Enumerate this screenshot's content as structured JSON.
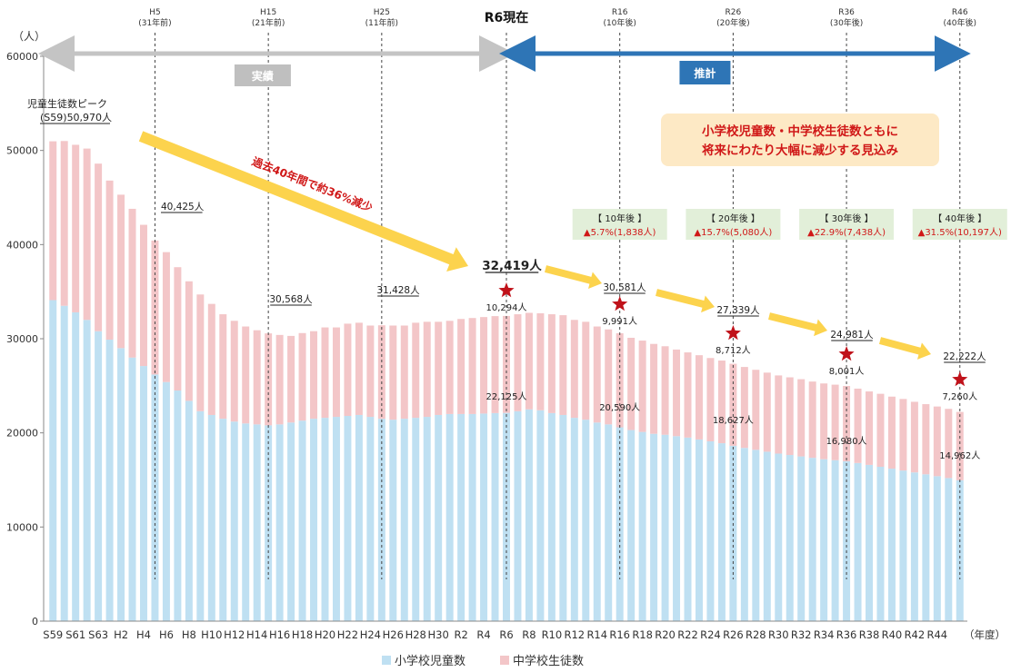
{
  "chart_data": {
    "type": "bar",
    "stacked": true,
    "y_unit": "（人）",
    "x_unit": "（年度）",
    "ylim": [
      0,
      60000
    ],
    "yticks": [
      0,
      10000,
      20000,
      30000,
      40000,
      50000,
      60000
    ],
    "categories": [
      "S59",
      "S60",
      "S61",
      "S62",
      "S63",
      "H1",
      "H2",
      "H3",
      "H4",
      "H5",
      "H6",
      "H7",
      "H8",
      "H9",
      "H10",
      "H11",
      "H12",
      "H13",
      "H14",
      "H15",
      "H16",
      "H17",
      "H18",
      "H19",
      "H20",
      "H21",
      "H22",
      "H23",
      "H24",
      "H25",
      "H26",
      "H27",
      "H28",
      "H29",
      "H30",
      "R1",
      "R2",
      "R3",
      "R4",
      "R5",
      "R6",
      "R7",
      "R8",
      "R9",
      "R10",
      "R11",
      "R12",
      "R13",
      "R14",
      "R15",
      "R16",
      "R17",
      "R18",
      "R19",
      "R20",
      "R21",
      "R22",
      "R23",
      "R24",
      "R25",
      "R26",
      "R27",
      "R28",
      "R29",
      "R30",
      "R31",
      "R32",
      "R33",
      "R34",
      "R35",
      "R36",
      "R37",
      "R38",
      "R39",
      "R40",
      "R41",
      "R42",
      "R43",
      "R44",
      "R45",
      "R46"
    ],
    "xtick_labels": [
      "S59",
      "S61",
      "S63",
      "H2",
      "H4",
      "H6",
      "H8",
      "H10",
      "H12",
      "H14",
      "H16",
      "H18",
      "H20",
      "H22",
      "H24",
      "H26",
      "H28",
      "H30",
      "R2",
      "R4",
      "R6",
      "R8",
      "R10",
      "R12",
      "R14",
      "R16",
      "R18",
      "R20",
      "R22",
      "R24",
      "R26",
      "R28",
      "R30",
      "R32",
      "R34",
      "R36",
      "R38",
      "R40",
      "R42",
      "R44"
    ],
    "series": [
      {
        "name": "小学校児童数",
        "color": "#bfe0f2",
        "values": [
          34100,
          33500,
          32800,
          32000,
          30800,
          29900,
          29000,
          28000,
          27100,
          26200,
          25400,
          24500,
          23400,
          22300,
          21900,
          21500,
          21200,
          21000,
          20900,
          20800,
          20900,
          21100,
          21300,
          21500,
          21600,
          21700,
          21800,
          21900,
          21700,
          21500,
          21400,
          21500,
          21600,
          21700,
          21900,
          22000,
          22000,
          22000,
          22050,
          22100,
          22125,
          22300,
          22500,
          22400,
          22100,
          21900,
          21600,
          21400,
          21100,
          20900,
          20590,
          20300,
          20100,
          19900,
          19800,
          19650,
          19500,
          19300,
          19100,
          18900,
          18627,
          18400,
          18200,
          18000,
          17800,
          17650,
          17500,
          17350,
          17200,
          17100,
          16980,
          16800,
          16600,
          16400,
          16200,
          16000,
          15800,
          15600,
          15400,
          15200,
          14962
        ]
      },
      {
        "name": "中学校生徒数",
        "color": "#f3c6c8",
        "values": [
          16870,
          17500,
          17800,
          18200,
          17800,
          16900,
          16300,
          15800,
          15000,
          14225,
          13800,
          13100,
          12700,
          12400,
          11800,
          11100,
          10700,
          10300,
          10000,
          9768,
          9500,
          9200,
          9300,
          9300,
          9600,
          9500,
          9800,
          9800,
          9700,
          9928,
          10000,
          9900,
          10100,
          10100,
          9900,
          9900,
          10100,
          10200,
          10250,
          10300,
          10294,
          10300,
          10250,
          10300,
          10500,
          10600,
          10400,
          10400,
          10200,
          10091,
          9991,
          9800,
          9700,
          9550,
          9400,
          9200,
          9050,
          8950,
          8850,
          8780,
          8712,
          8600,
          8500,
          8400,
          8300,
          8250,
          8200,
          8100,
          8050,
          8020,
          8001,
          7900,
          7800,
          7750,
          7650,
          7600,
          7500,
          7450,
          7400,
          7350,
          7260
        ]
      }
    ],
    "period_labels": {
      "actual": "実績",
      "projection": "推計"
    },
    "ref_lines": [
      {
        "cat": "H5",
        "line1": "H5",
        "line2": "(31年前)"
      },
      {
        "cat": "H15",
        "line1": "H15",
        "line2": "(21年前)"
      },
      {
        "cat": "H25",
        "line1": "H25",
        "line2": "(11年前)"
      },
      {
        "cat": "R6",
        "line1": "R6現在",
        "line2": ""
      },
      {
        "cat": "R16",
        "line1": "R16",
        "line2": "(10年後)"
      },
      {
        "cat": "R26",
        "line1": "R26",
        "line2": "(20年後)"
      },
      {
        "cat": "R36",
        "line1": "R36",
        "line2": "(30年後)"
      },
      {
        "cat": "R46",
        "line1": "R46",
        "line2": "(40年後)"
      }
    ],
    "peak_label": {
      "line1": "児童生徒数ピーク",
      "line2": "(S59)50,970人"
    },
    "trend_note": "過去40年間で約36%減少",
    "headline": {
      "line1": "小学校児童数・中学校生徒数ともに",
      "line2": "将来にわたり大幅に減少する見込み"
    },
    "total_labels": [
      {
        "cat": "H5",
        "text": "40,425人"
      },
      {
        "cat": "H15",
        "text": "30,568人"
      },
      {
        "cat": "H25",
        "text": "31,428人"
      },
      {
        "cat": "R6",
        "text": "32,419人",
        "major": true
      },
      {
        "cat": "R16",
        "text": "30,581人"
      },
      {
        "cat": "R26",
        "text": "27,339人"
      },
      {
        "cat": "R36",
        "text": "24,981人"
      },
      {
        "cat": "R46",
        "text": "22,222人"
      }
    ],
    "junior_labels": [
      {
        "cat": "R6",
        "text": "10,294人"
      },
      {
        "cat": "R16",
        "text": "9,991人"
      },
      {
        "cat": "R26",
        "text": "8,712人"
      },
      {
        "cat": "R36",
        "text": "8,001人"
      },
      {
        "cat": "R46",
        "text": "7,260人"
      }
    ],
    "elementary_labels": [
      {
        "cat": "R6",
        "text": "22,125人"
      },
      {
        "cat": "R16",
        "text": "20,590人"
      },
      {
        "cat": "R26",
        "text": "18,627人"
      },
      {
        "cat": "R36",
        "text": "16,980人"
      },
      {
        "cat": "R46",
        "text": "14,962人"
      }
    ],
    "change_boxes": [
      {
        "cat": "R16",
        "head": "【 10年後 】",
        "value": "▲5.7%(1,838人)"
      },
      {
        "cat": "R26",
        "head": "【 20年後 】",
        "value": "▲15.7%(5,080人)"
      },
      {
        "cat": "R36",
        "head": "【 30年後 】",
        "value": "▲22.9%(7,438人)"
      },
      {
        "cat": "R46",
        "head": "【 40年後 】",
        "value": "▲31.5%(10,197人)"
      }
    ],
    "legend": {
      "placement": "bottom-center"
    }
  }
}
